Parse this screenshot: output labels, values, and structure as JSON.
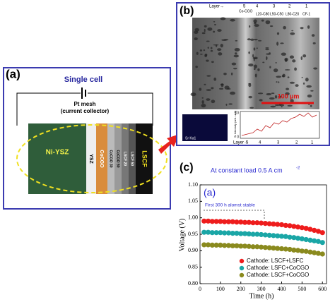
{
  "panel_a": {
    "label": "(a)",
    "title": "Single cell",
    "mesh": "Pt mesh",
    "collector": "(current collector)",
    "layers": [
      "Ni-YSZ",
      "YSZ",
      "CoCGO",
      "CoCGO 30",
      "CoCGO 50",
      "LSCF 20",
      "LSCF 50",
      "LSCF"
    ]
  },
  "panel_b": {
    "label": "(b)",
    "layer_word": "Layer→",
    "layer_numbers": [
      "5",
      "4",
      "3",
      "2",
      "1"
    ],
    "layer_names": [
      "Co-CGO",
      "L20-C80",
      "L50-C50",
      "L80-C20",
      "CF-1"
    ],
    "scale": "100 µm",
    "map_label": "Sr Ka1",
    "inset_axis": "Sr Intensity (arb. unit)",
    "inset_ticks": [
      "10",
      "0"
    ]
  },
  "chart_data": {
    "type": "scatter",
    "panel_label": "(c)",
    "title": "At constant load 0.5 A cm",
    "title_sup": "-2",
    "annotation": "(a)",
    "note": "First 300 h alomst stable",
    "xlabel": "Time (h)",
    "ylabel": "Voltage (V)",
    "x": [
      20,
      40,
      60,
      80,
      100,
      120,
      140,
      160,
      180,
      200,
      220,
      240,
      260,
      280,
      300,
      320,
      340,
      360,
      380,
      400,
      420,
      440,
      460,
      480,
      500,
      520,
      540,
      560,
      580,
      600
    ],
    "series": [
      {
        "name": "Cathode: LSCF+LSFC",
        "color": "#ee1c1c",
        "values": [
          0.99,
          0.99,
          0.989,
          0.989,
          0.989,
          0.988,
          0.988,
          0.988,
          0.987,
          0.987,
          0.986,
          0.986,
          0.985,
          0.985,
          0.984,
          0.983,
          0.982,
          0.981,
          0.98,
          0.979,
          0.977,
          0.976,
          0.974,
          0.972,
          0.97,
          0.968,
          0.965,
          0.962,
          0.959,
          0.955
        ]
      },
      {
        "name": "Cathode: LSFC+CoCGO",
        "color": "#1aa6a6",
        "values": [
          0.956,
          0.956,
          0.955,
          0.955,
          0.955,
          0.954,
          0.954,
          0.953,
          0.953,
          0.952,
          0.952,
          0.951,
          0.95,
          0.95,
          0.949,
          0.948,
          0.947,
          0.946,
          0.945,
          0.944,
          0.943,
          0.941,
          0.94,
          0.938,
          0.936,
          0.934,
          0.932,
          0.93,
          0.928,
          0.925
        ]
      },
      {
        "name": "Cathode: LSCF+CoCGO",
        "color": "#8a8a1e",
        "values": [
          0.918,
          0.918,
          0.917,
          0.917,
          0.917,
          0.916,
          0.916,
          0.915,
          0.915,
          0.914,
          0.914,
          0.913,
          0.912,
          0.912,
          0.911,
          0.91,
          0.909,
          0.908,
          0.907,
          0.906,
          0.905,
          0.904,
          0.902,
          0.901,
          0.899,
          0.898,
          0.896,
          0.894,
          0.892,
          0.89
        ]
      }
    ],
    "xlim": [
      0,
      620
    ],
    "xticks": [
      0,
      100,
      200,
      300,
      400,
      500,
      600
    ],
    "ylim": [
      0.8,
      1.1
    ],
    "yticks": [
      {
        "value": 0.8,
        "label": "0.80"
      },
      {
        "value": 0.85,
        "label": "0.85"
      },
      {
        "value": 0.9,
        "label": "0.90"
      },
      {
        "value": 0.95,
        "label": "0.95"
      },
      {
        "value": 1.0,
        "label": "1.00"
      },
      {
        "value": 1.05,
        "label": "1.05"
      },
      {
        "value": 1.1,
        "label": "1.10"
      }
    ],
    "legend": "lower right"
  }
}
